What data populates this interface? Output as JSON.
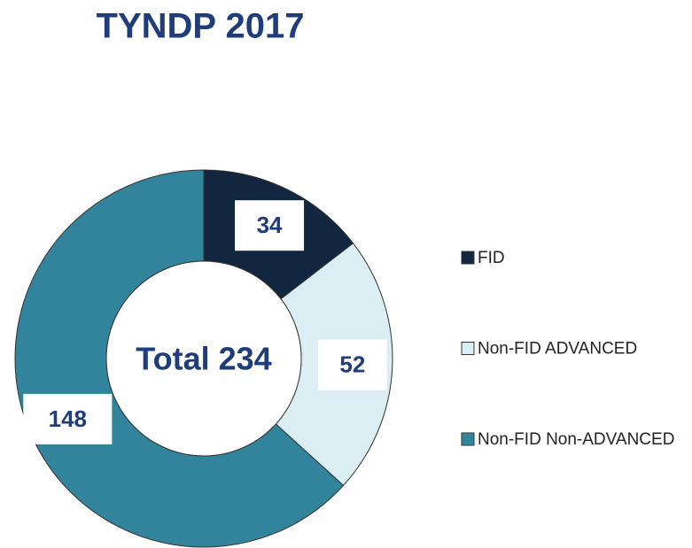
{
  "chart_data": {
    "type": "donut",
    "title": "TYNDP 2017",
    "center_label": "Total 234",
    "categories": [
      "FID",
      "Non-FID ADVANCED",
      "Non-FID Non-ADVANCED"
    ],
    "values": [
      34,
      52,
      148
    ],
    "colors": [
      "#13263f",
      "#dbeef4",
      "#31849b"
    ],
    "legend": "right"
  }
}
